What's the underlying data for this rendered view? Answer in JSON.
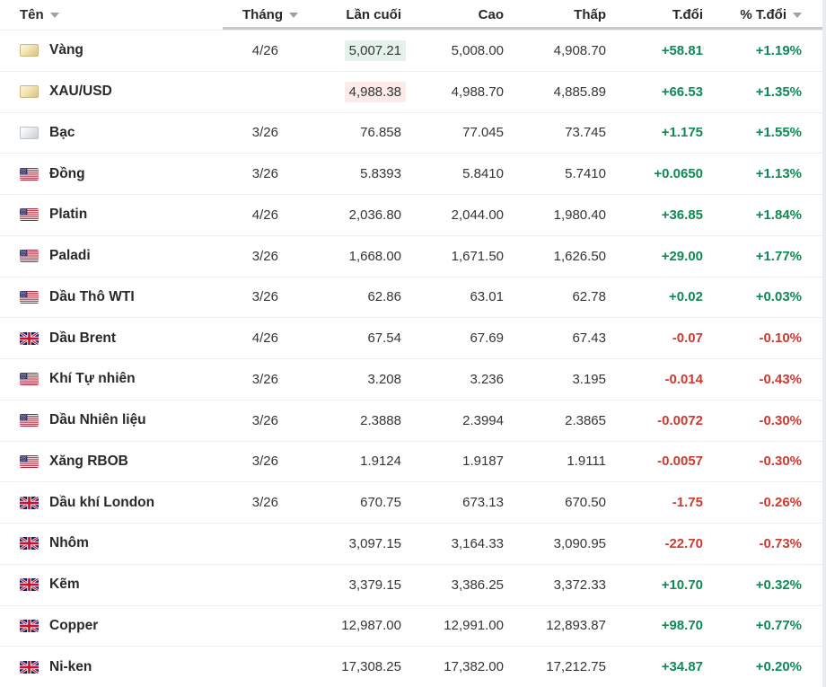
{
  "colors": {
    "green": "#0f8a55",
    "red": "#cf3a30",
    "flash_up_bg": "#e4f2ea",
    "flash_down_bg": "#fcebe9"
  },
  "table": {
    "columns": [
      {
        "label": "Tên",
        "align": "left",
        "sort_arrow": true
      },
      {
        "label": "Tháng",
        "align": "right",
        "sort_arrow": true
      },
      {
        "label": "Lần cuối",
        "align": "right",
        "sort_arrow": false
      },
      {
        "label": "Cao",
        "align": "right",
        "sort_arrow": false
      },
      {
        "label": "Thấp",
        "align": "right",
        "sort_arrow": false
      },
      {
        "label": "T.đổi",
        "align": "right",
        "sort_arrow": false
      },
      {
        "label": "% T.đổi",
        "align": "right",
        "sort_arrow": true
      }
    ],
    "rows": [
      {
        "icon": "gold-bar",
        "name": "Vàng",
        "month": "4/26",
        "last": "5,007.21",
        "high": "5,008.00",
        "low": "4,908.70",
        "change": "+58.81",
        "change_pct": "+1.19%",
        "direction": "up",
        "last_flash": "up"
      },
      {
        "icon": "gold-bar",
        "name": "XAU/USD",
        "month": "",
        "last": "4,988.38",
        "high": "4,988.70",
        "low": "4,885.89",
        "change": "+66.53",
        "change_pct": "+1.35%",
        "direction": "up",
        "last_flash": "down"
      },
      {
        "icon": "silver-bar",
        "name": "Bạc",
        "month": "3/26",
        "last": "76.858",
        "high": "77.045",
        "low": "73.745",
        "change": "+1.175",
        "change_pct": "+1.55%",
        "direction": "up",
        "last_flash": null
      },
      {
        "icon": "us-flag",
        "name": "Đồng",
        "month": "3/26",
        "last": "5.8393",
        "high": "5.8410",
        "low": "5.7410",
        "change": "+0.0650",
        "change_pct": "+1.13%",
        "direction": "up",
        "last_flash": null
      },
      {
        "icon": "us-flag",
        "name": "Platin",
        "month": "4/26",
        "last": "2,036.80",
        "high": "2,044.00",
        "low": "1,980.40",
        "change": "+36.85",
        "change_pct": "+1.84%",
        "direction": "up",
        "last_flash": null
      },
      {
        "icon": "us-flag",
        "name": "Paladi",
        "month": "3/26",
        "last": "1,668.00",
        "high": "1,671.50",
        "low": "1,626.50",
        "change": "+29.00",
        "change_pct": "+1.77%",
        "direction": "up",
        "last_flash": null
      },
      {
        "icon": "us-flag",
        "name": "Dầu Thô WTI",
        "month": "3/26",
        "last": "62.86",
        "high": "63.01",
        "low": "62.78",
        "change": "+0.02",
        "change_pct": "+0.03%",
        "direction": "up",
        "last_flash": null
      },
      {
        "icon": "uk-flag",
        "name": "Dầu Brent",
        "month": "4/26",
        "last": "67.54",
        "high": "67.69",
        "low": "67.43",
        "change": "-0.07",
        "change_pct": "-0.10%",
        "direction": "down",
        "last_flash": null
      },
      {
        "icon": "us-flag",
        "name": "Khí Tự nhiên",
        "month": "3/26",
        "last": "3.208",
        "high": "3.236",
        "low": "3.195",
        "change": "-0.014",
        "change_pct": "-0.43%",
        "direction": "down",
        "last_flash": null
      },
      {
        "icon": "us-flag",
        "name": "Dầu Nhiên liệu",
        "month": "3/26",
        "last": "2.3888",
        "high": "2.3994",
        "low": "2.3865",
        "change": "-0.0072",
        "change_pct": "-0.30%",
        "direction": "down",
        "last_flash": null
      },
      {
        "icon": "us-flag",
        "name": "Xăng RBOB",
        "month": "3/26",
        "last": "1.9124",
        "high": "1.9187",
        "low": "1.9111",
        "change": "-0.0057",
        "change_pct": "-0.30%",
        "direction": "down",
        "last_flash": null
      },
      {
        "icon": "uk-flag",
        "name": "Dầu khí London",
        "month": "3/26",
        "last": "670.75",
        "high": "673.13",
        "low": "670.50",
        "change": "-1.75",
        "change_pct": "-0.26%",
        "direction": "down",
        "last_flash": null
      },
      {
        "icon": "uk-flag",
        "name": "Nhôm",
        "month": "",
        "last": "3,097.15",
        "high": "3,164.33",
        "low": "3,090.95",
        "change": "-22.70",
        "change_pct": "-0.73%",
        "direction": "down",
        "last_flash": null
      },
      {
        "icon": "uk-flag",
        "name": "Kẽm",
        "month": "",
        "last": "3,379.15",
        "high": "3,386.25",
        "low": "3,372.33",
        "change": "+10.70",
        "change_pct": "+0.32%",
        "direction": "up",
        "last_flash": null
      },
      {
        "icon": "uk-flag",
        "name": "Copper",
        "month": "",
        "last": "12,987.00",
        "high": "12,991.00",
        "low": "12,893.87",
        "change": "+98.70",
        "change_pct": "+0.77%",
        "direction": "up",
        "last_flash": null
      },
      {
        "icon": "uk-flag",
        "name": "Ni-ken",
        "month": "",
        "last": "17,308.25",
        "high": "17,382.00",
        "low": "17,212.75",
        "change": "+34.87",
        "change_pct": "+0.20%",
        "direction": "up",
        "last_flash": null
      }
    ]
  }
}
